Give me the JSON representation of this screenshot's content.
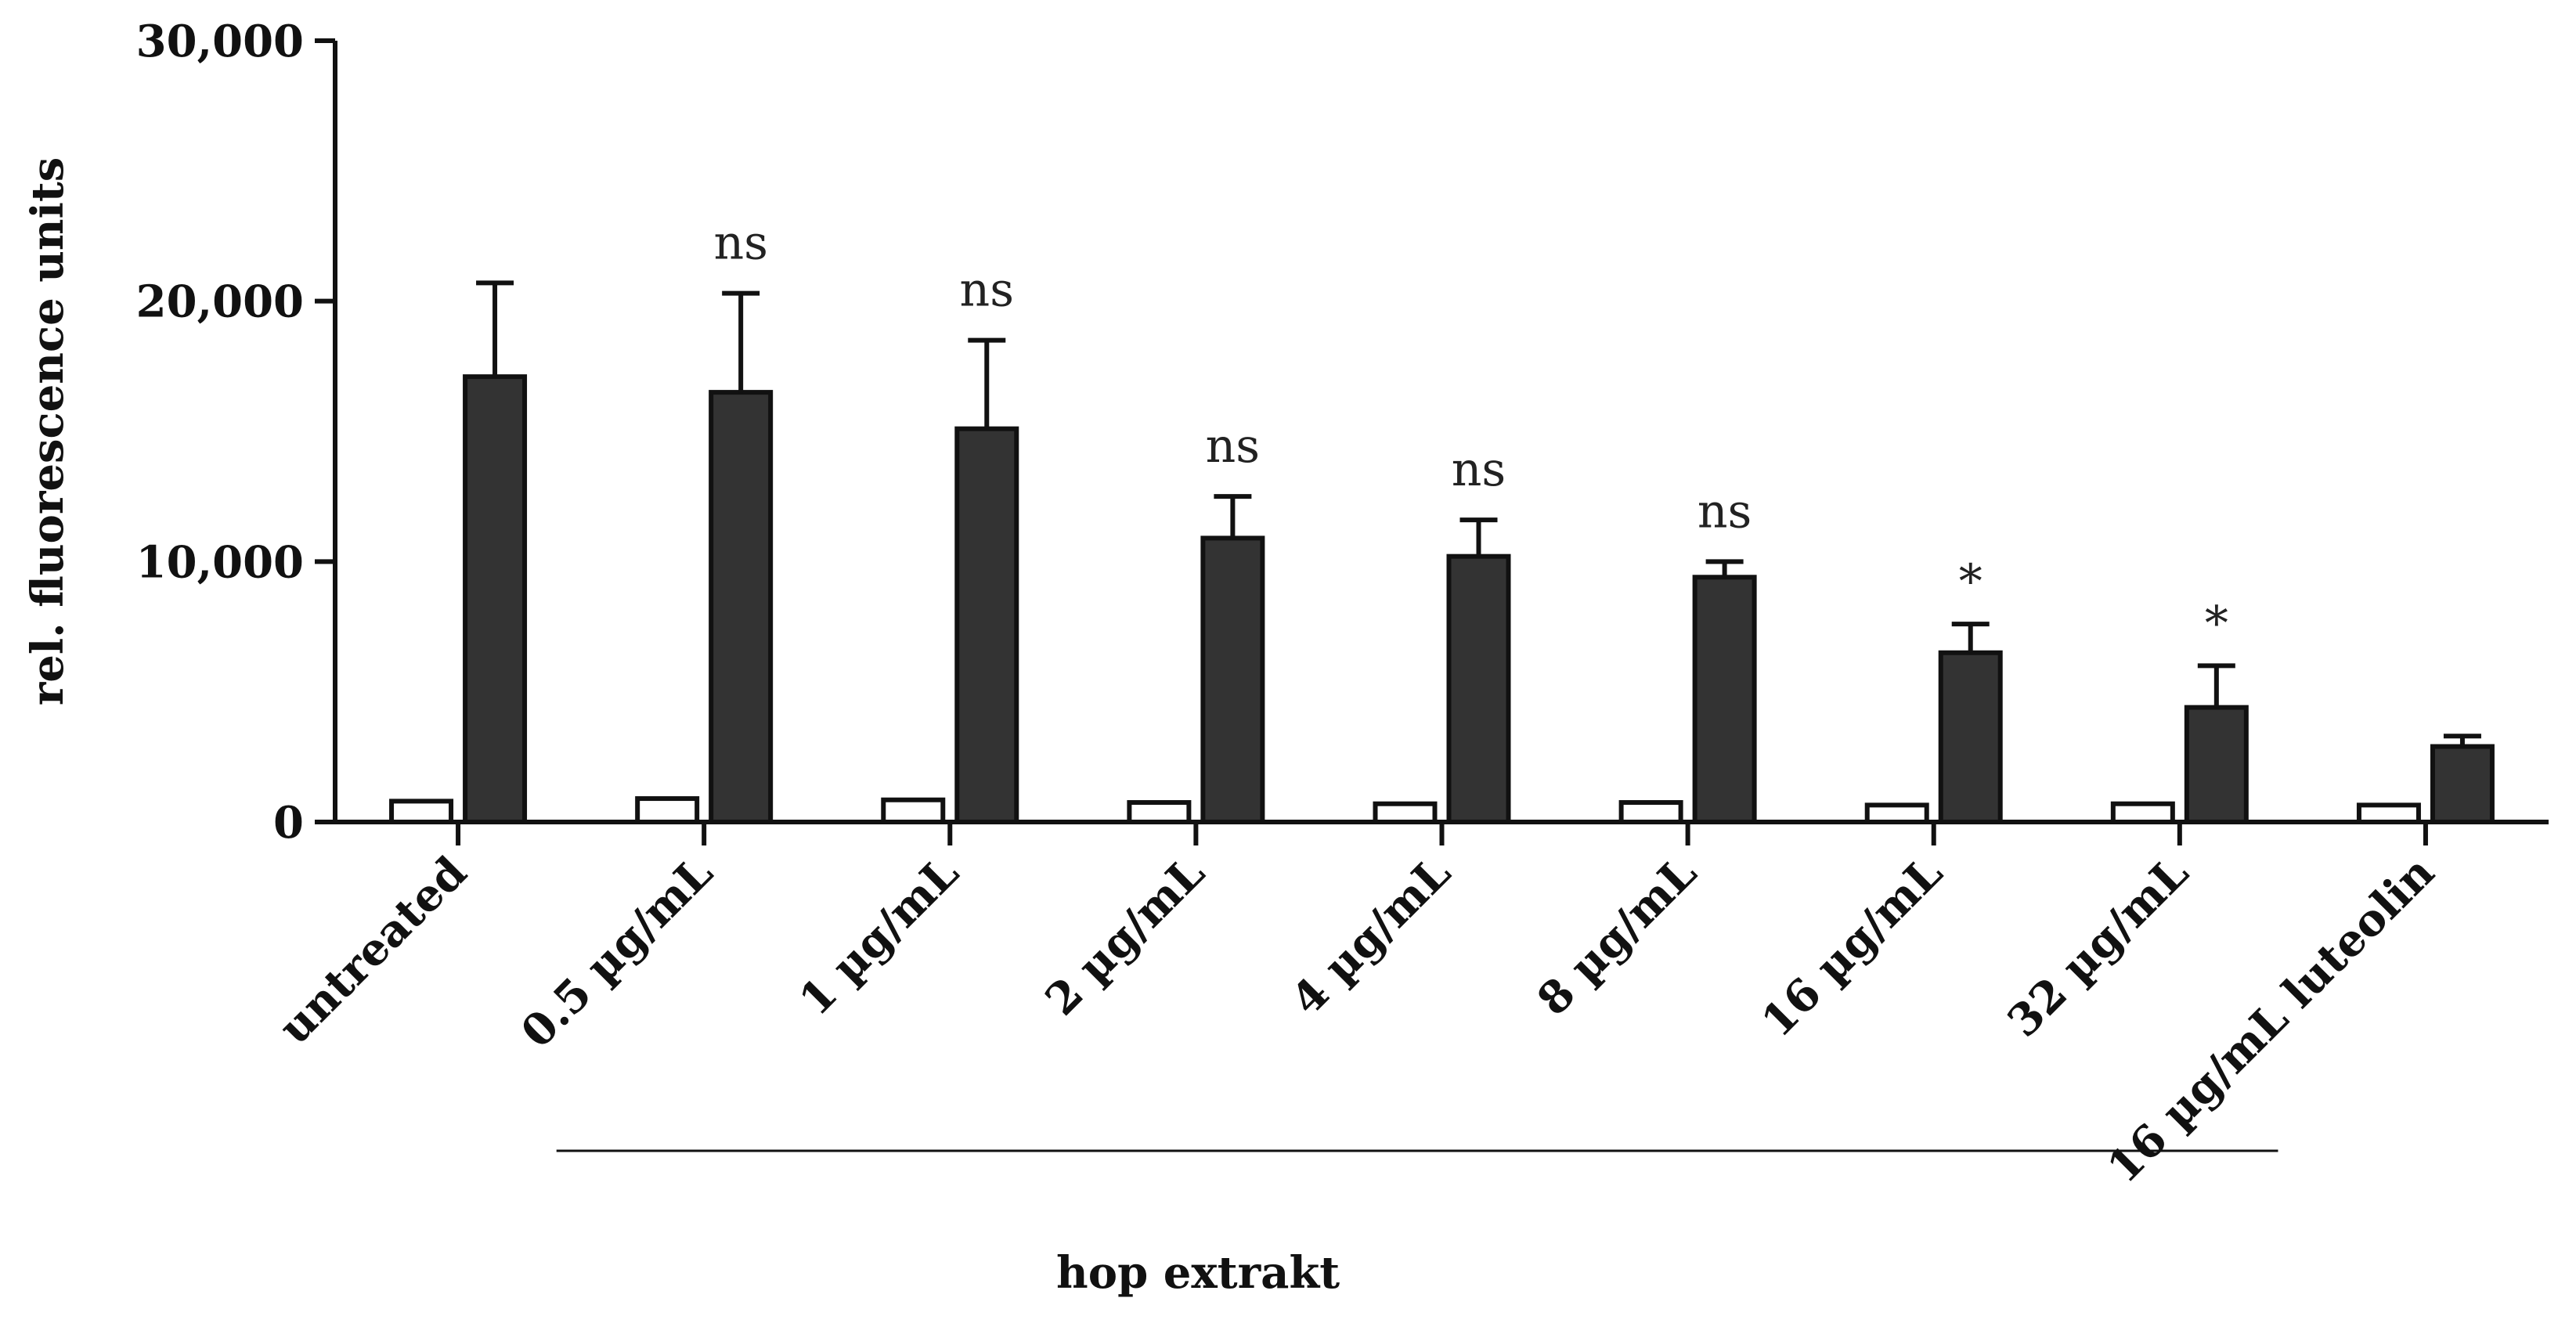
{
  "chart_data": {
    "type": "bar",
    "ylabel": "rel. fluorescence units",
    "ylim": [
      0,
      30000
    ],
    "yticks": [
      {
        "value": 0,
        "label": "0"
      },
      {
        "value": 10000,
        "label": "10,000"
      },
      {
        "value": 20000,
        "label": "20,000"
      },
      {
        "value": 30000,
        "label": "30,000"
      }
    ],
    "categories": [
      "untreated",
      "0.5 µg/mL",
      "1 µg/mL",
      "2 µg/mL",
      "4 µg/mL",
      "8 µg/mL",
      "16 µg/mL",
      "32 µg/mL",
      "16 µg/mL luteolin"
    ],
    "series": [
      {
        "color": "#ffffff",
        "values": [
          800,
          900,
          850,
          750,
          700,
          750,
          650,
          700,
          650
        ],
        "errors": [
          0,
          0,
          0,
          0,
          0,
          0,
          0,
          0,
          0
        ]
      },
      {
        "color": "#333333",
        "values": [
          17100,
          16500,
          15100,
          10900,
          10200,
          9400,
          6500,
          4400,
          2900
        ],
        "errors": [
          3600,
          3800,
          3400,
          1600,
          1400,
          600,
          1100,
          1600,
          400
        ]
      }
    ],
    "annotations": [
      "",
      "ns",
      "ns",
      "ns",
      "ns",
      "ns",
      "*",
      "*",
      ""
    ],
    "group_label": "hop extrakt",
    "group_span": [
      1,
      7
    ]
  }
}
